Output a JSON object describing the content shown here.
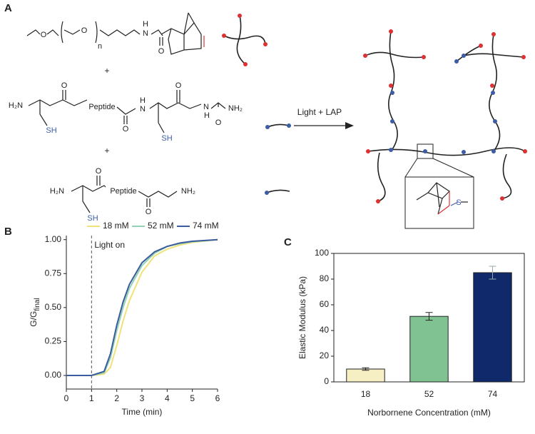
{
  "panel_labels": [
    "A",
    "B",
    "C"
  ],
  "scheme": {
    "row1": {
      "o1": "O",
      "o2": "O",
      "n": "n",
      "n_atom": "N",
      "h": "H",
      "o3": "O"
    },
    "plus1": "+",
    "row2": {
      "h2n": "H₂N",
      "o1": "O",
      "peptide": "Peptide",
      "o2": "O",
      "n1": "N",
      "h1": "H",
      "o3": "O",
      "n2": "N",
      "h2": "H",
      "o4": "O",
      "nh2": "NH₂",
      "sh1": "SH",
      "sh2": "SH"
    },
    "plus2": "+",
    "row3": {
      "h2n": "H₂N",
      "o1": "O",
      "peptide": "Peptide",
      "o2": "O",
      "nh2": "NH₂",
      "sh": "SH"
    },
    "arrow_label": "Light + LAP",
    "inset_s": "S"
  },
  "chart_data": [
    {
      "type": "line",
      "xlabel": "Time (min)",
      "ylabel": {
        "main": "G/G",
        "sub": "final"
      },
      "x": [
        0,
        0.5,
        1,
        1.5,
        1.75,
        2,
        2.25,
        2.5,
        3,
        3.5,
        4,
        4.5,
        5,
        6
      ],
      "series": [
        {
          "name": "18 mM",
          "color": "#f0e27a",
          "values": [
            0,
            0,
            0,
            0.01,
            0.06,
            0.22,
            0.4,
            0.55,
            0.76,
            0.88,
            0.93,
            0.96,
            0.98,
            1.0
          ]
        },
        {
          "name": "52 mM",
          "color": "#93d3b4",
          "values": [
            0,
            0,
            0,
            0.02,
            0.13,
            0.33,
            0.5,
            0.64,
            0.81,
            0.9,
            0.95,
            0.97,
            0.985,
            1.0
          ]
        },
        {
          "name": "74 mM",
          "color": "#3d5c9e",
          "values": [
            0,
            0,
            0,
            0.03,
            0.16,
            0.37,
            0.54,
            0.67,
            0.83,
            0.91,
            0.95,
            0.975,
            0.988,
            1.0
          ]
        }
      ],
      "xlim": [
        0,
        6
      ],
      "xticks": [
        0,
        1,
        2,
        3,
        4,
        5,
        6
      ],
      "ylim": [
        -0.1,
        1.03
      ],
      "yticks": [
        {
          "value": 0,
          "label": "0.00"
        },
        {
          "value": 0.25,
          "label": "0.25"
        },
        {
          "value": 0.5,
          "label": "0.50"
        },
        {
          "value": 0.75,
          "label": "0.75"
        },
        {
          "value": 1,
          "label": "1.00"
        }
      ],
      "annotations": [
        {
          "text": "Light on",
          "x": 1
        }
      ],
      "legend": "top"
    },
    {
      "type": "bar",
      "xlabel": "Norbornene Concentration (mM)",
      "ylabel": "Elastic Modulus (kPa)",
      "categories": [
        "18",
        "52",
        "74"
      ],
      "values": [
        10,
        51,
        85
      ],
      "errors": [
        1,
        3,
        5
      ],
      "colors": [
        "#f7efc4",
        "#80c291",
        "#10296a"
      ],
      "ylim": [
        0,
        100
      ],
      "yticks": [
        0,
        20,
        40,
        60,
        80,
        100
      ]
    }
  ]
}
